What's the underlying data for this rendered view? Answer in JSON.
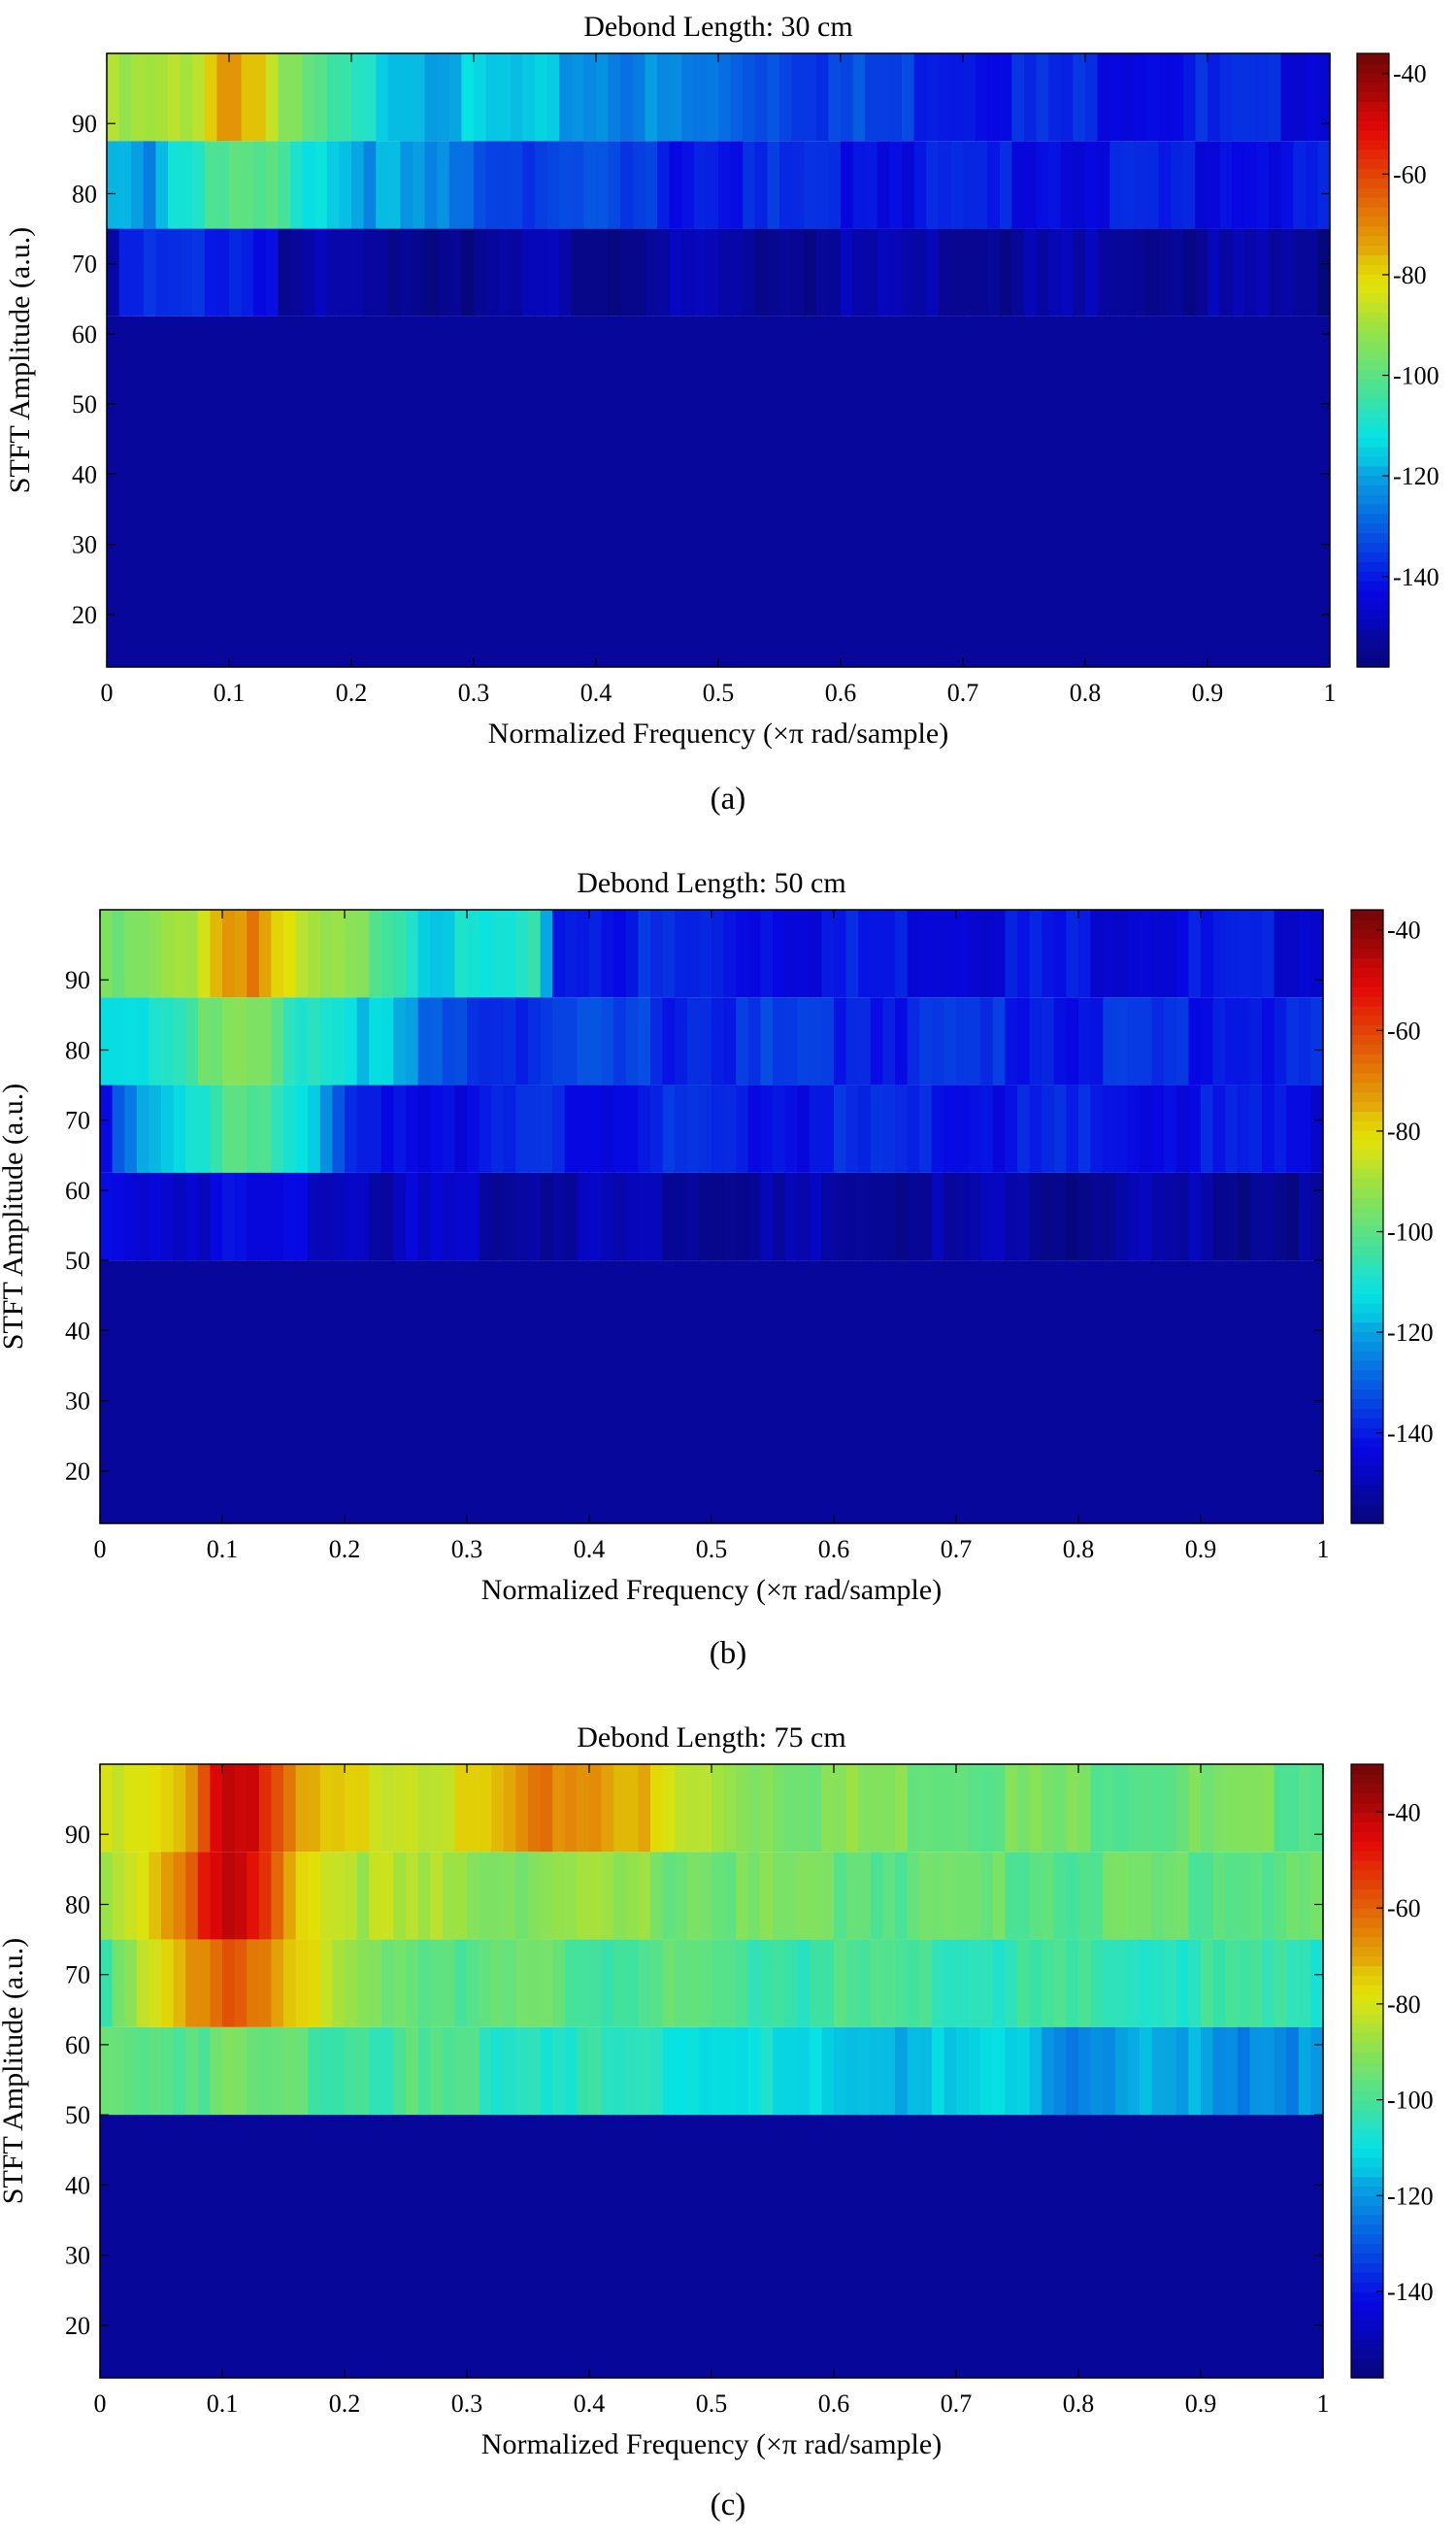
{
  "chart_data": [
    {
      "type": "heatmap",
      "panel_label": "(a)",
      "title": "Debond Length: 30 cm",
      "xlabel": "Normalized Frequency (×π rad/sample)",
      "ylabel": "STFT Amplitude (a.u.)",
      "xlim": [
        0,
        1
      ],
      "ylim": [
        12.5,
        100
      ],
      "xticks": [
        "0",
        "0.1",
        "0.2",
        "0.3",
        "0.4",
        "0.5",
        "0.6",
        "0.7",
        "0.8",
        "0.9",
        "1"
      ],
      "yticks": [
        "20",
        "30",
        "40",
        "50",
        "60",
        "70",
        "80",
        "90"
      ],
      "colorbar": {
        "min": -158,
        "max": -36,
        "ticks": [
          "-40",
          "-60",
          "-80",
          "-100",
          "-120",
          "-140"
        ]
      },
      "rows": [
        {
          "y0": 87.5,
          "y1": 100,
          "profile": [
            [
              0,
              -93
            ],
            [
              0.07,
              -90
            ],
            [
              0.08,
              -78
            ],
            [
              0.1,
              -70
            ],
            [
              0.12,
              -74
            ],
            [
              0.13,
              -80
            ],
            [
              0.145,
              -96
            ],
            [
              0.2,
              -110
            ],
            [
              0.26,
              -116
            ],
            [
              0.35,
              -119
            ],
            [
              0.4,
              -122
            ],
            [
              0.5,
              -128
            ],
            [
              0.6,
              -134
            ],
            [
              0.75,
              -139
            ],
            [
              0.9,
              -140
            ],
            [
              1,
              -142
            ]
          ]
        },
        {
          "y0": 75,
          "y1": 87.5,
          "profile": [
            [
              0,
              -118
            ],
            [
              0.02,
              -116
            ],
            [
              0.04,
              -124
            ],
            [
              0.05,
              -110
            ],
            [
              0.1,
              -102
            ],
            [
              0.15,
              -105
            ],
            [
              0.2,
              -118
            ],
            [
              0.3,
              -130
            ],
            [
              0.45,
              -138
            ],
            [
              0.6,
              -140
            ],
            [
              0.8,
              -141
            ],
            [
              1,
              -141
            ]
          ]
        },
        {
          "y0": 62.5,
          "y1": 75,
          "profile": [
            [
              0,
              -150
            ],
            [
              0.015,
              -141
            ],
            [
              0.06,
              -140
            ],
            [
              0.1,
              -137
            ],
            [
              0.14,
              -141
            ],
            [
              0.145,
              -153
            ],
            [
              1,
              -153
            ]
          ]
        },
        {
          "y0": 12.5,
          "y1": 62.5,
          "profile": [
            [
              0,
              -153
            ],
            [
              1,
              -153
            ]
          ]
        }
      ]
    },
    {
      "type": "heatmap",
      "panel_label": "(b)",
      "title": "Debond Length: 50 cm",
      "xlabel": "Normalized Frequency (×π rad/sample)",
      "ylabel": "STFT Amplitude (a.u.)",
      "xlim": [
        0,
        1
      ],
      "ylim": [
        12.5,
        100
      ],
      "xticks": [
        "0",
        "0.1",
        "0.2",
        "0.3",
        "0.4",
        "0.5",
        "0.6",
        "0.7",
        "0.8",
        "0.9",
        "1"
      ],
      "yticks": [
        "20",
        "30",
        "40",
        "50",
        "60",
        "70",
        "80",
        "90"
      ],
      "colorbar": {
        "min": -158,
        "max": -36,
        "ticks": [
          "-40",
          "-60",
          "-80",
          "-100",
          "-120",
          "-140"
        ]
      },
      "rows": [
        {
          "y0": 87.5,
          "y1": 100,
          "profile": [
            [
              0,
              -100
            ],
            [
              0.05,
              -95
            ],
            [
              0.08,
              -85
            ],
            [
              0.1,
              -72
            ],
            [
              0.13,
              -66
            ],
            [
              0.14,
              -80
            ],
            [
              0.17,
              -92
            ],
            [
              0.24,
              -100
            ],
            [
              0.27,
              -112
            ],
            [
              0.3,
              -114
            ],
            [
              0.36,
              -110
            ],
            [
              0.37,
              -138
            ],
            [
              0.6,
              -141
            ],
            [
              1,
              -143
            ]
          ]
        },
        {
          "y0": 75,
          "y1": 87.5,
          "profile": [
            [
              0,
              -112
            ],
            [
              0.05,
              -108
            ],
            [
              0.09,
              -98
            ],
            [
              0.12,
              -96
            ],
            [
              0.16,
              -105
            ],
            [
              0.2,
              -110
            ],
            [
              0.22,
              -115
            ],
            [
              0.25,
              -121
            ],
            [
              0.27,
              -134
            ],
            [
              0.5,
              -137
            ],
            [
              1,
              -139
            ]
          ]
        },
        {
          "y0": 62.5,
          "y1": 75,
          "profile": [
            [
              0,
              -140
            ],
            [
              0.03,
              -125
            ],
            [
              0.07,
              -115
            ],
            [
              0.1,
              -100
            ],
            [
              0.13,
              -98
            ],
            [
              0.16,
              -112
            ],
            [
              0.19,
              -128
            ],
            [
              0.2,
              -140
            ],
            [
              0.6,
              -140
            ],
            [
              1,
              -142
            ]
          ]
        },
        {
          "y0": 50,
          "y1": 62.5,
          "profile": [
            [
              0,
              -144
            ],
            [
              0.2,
              -145
            ],
            [
              0.23,
              -148
            ],
            [
              0.3,
              -150
            ],
            [
              0.49,
              -151
            ],
            [
              0.5,
              -153
            ],
            [
              1,
              -153
            ]
          ]
        },
        {
          "y0": 12.5,
          "y1": 50,
          "profile": [
            [
              0,
              -153
            ],
            [
              1,
              -153
            ]
          ]
        }
      ]
    },
    {
      "type": "heatmap",
      "panel_label": "(c)",
      "title": "Debond Length: 75 cm",
      "xlabel": "Normalized Frequency (×π rad/sample)",
      "ylabel": "STFT Amplitude (a.u.)",
      "xlim": [
        0,
        1
      ],
      "ylim": [
        12.5,
        100
      ],
      "xticks": [
        "0",
        "0.1",
        "0.2",
        "0.3",
        "0.4",
        "0.5",
        "0.6",
        "0.7",
        "0.8",
        "0.9",
        "1"
      ],
      "yticks": [
        "20",
        "30",
        "40",
        "50",
        "60",
        "70",
        "80",
        "90"
      ],
      "colorbar": {
        "min": -158,
        "max": -30,
        "ticks": [
          "-40",
          "-60",
          "-80",
          "-100",
          "-120",
          "-140"
        ]
      },
      "rows": [
        {
          "y0": 87.5,
          "y1": 100,
          "profile": [
            [
              0,
              -85
            ],
            [
              0.06,
              -78
            ],
            [
              0.08,
              -60
            ],
            [
              0.1,
              -40
            ],
            [
              0.12,
              -38
            ],
            [
              0.14,
              -55
            ],
            [
              0.16,
              -72
            ],
            [
              0.2,
              -78
            ],
            [
              0.3,
              -80
            ],
            [
              0.34,
              -70
            ],
            [
              0.38,
              -64
            ],
            [
              0.43,
              -68
            ],
            [
              0.47,
              -84
            ],
            [
              0.55,
              -90
            ],
            [
              0.7,
              -93
            ],
            [
              0.85,
              -95
            ],
            [
              1,
              -95
            ]
          ]
        },
        {
          "y0": 75,
          "y1": 87.5,
          "profile": [
            [
              0,
              -88
            ],
            [
              0.05,
              -70
            ],
            [
              0.08,
              -54
            ],
            [
              0.1,
              -42
            ],
            [
              0.12,
              -46
            ],
            [
              0.14,
              -60
            ],
            [
              0.18,
              -80
            ],
            [
              0.25,
              -88
            ],
            [
              0.4,
              -90
            ],
            [
              0.55,
              -94
            ],
            [
              0.7,
              -96
            ],
            [
              1,
              -96
            ]
          ]
        },
        {
          "y0": 62.5,
          "y1": 75,
          "profile": [
            [
              0,
              -100
            ],
            [
              0.03,
              -90
            ],
            [
              0.07,
              -72
            ],
            [
              0.1,
              -56
            ],
            [
              0.13,
              -60
            ],
            [
              0.16,
              -76
            ],
            [
              0.2,
              -90
            ],
            [
              0.3,
              -96
            ],
            [
              0.5,
              -100
            ],
            [
              0.7,
              -103
            ],
            [
              0.85,
              -104
            ],
            [
              1,
              -103
            ]
          ]
        },
        {
          "y0": 50,
          "y1": 62.5,
          "profile": [
            [
              0,
              -97
            ],
            [
              0.1,
              -95
            ],
            [
              0.3,
              -102
            ],
            [
              0.45,
              -106
            ],
            [
              0.55,
              -110
            ],
            [
              0.56,
              -115
            ],
            [
              0.77,
              -115
            ],
            [
              0.78,
              -120
            ],
            [
              1,
              -120
            ]
          ]
        },
        {
          "y0": 12.5,
          "y1": 50,
          "profile": [
            [
              0,
              -153
            ],
            [
              1,
              -153
            ]
          ]
        }
      ]
    }
  ]
}
